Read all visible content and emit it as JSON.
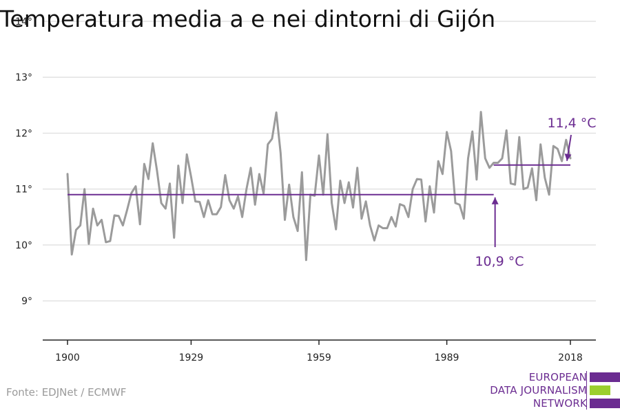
{
  "title": "Temperatura media a e nei dintorni di Gijón",
  "source": "Fonte: EDJNet / ECMWF",
  "logo": {
    "lines": [
      "EUROPEAN",
      "DATA JOURNALISM",
      "NETWORK"
    ],
    "text_color": "#6b2c91",
    "bar_colors": [
      "#6b2c91",
      "#9bcf2e",
      "#6b2c91"
    ]
  },
  "colors": {
    "series": "#9b9b9b",
    "average": "#6b2c91",
    "grid": "#e2e2e2",
    "axis": "#222222"
  },
  "chart_data": {
    "type": "line",
    "title": "Temperatura media a e nei dintorni di Gijón",
    "xlabel": "",
    "ylabel": "",
    "xlim": [
      1900,
      2018
    ],
    "ylim": [
      8.3,
      14
    ],
    "yticks": [
      9,
      10,
      11,
      12,
      13,
      14
    ],
    "ytick_labels": [
      "9°",
      "10°",
      "11°",
      "12°",
      "13°",
      "14°"
    ],
    "xticks": [
      1900,
      1929,
      1959,
      1989,
      2018
    ],
    "xtick_labels": [
      "1900",
      "1929",
      "1959",
      "1989",
      "2018"
    ],
    "grid": true,
    "series": [
      {
        "x_start": 1900,
        "x_step": 1,
        "values": [
          11.27,
          9.83,
          10.27,
          10.35,
          11.0,
          10.02,
          10.65,
          10.35,
          10.45,
          10.05,
          10.07,
          10.53,
          10.52,
          10.35,
          10.63,
          10.93,
          11.05,
          10.37,
          11.45,
          11.18,
          11.82,
          11.33,
          10.75,
          10.65,
          11.1,
          10.13,
          11.42,
          10.75,
          11.62,
          11.22,
          10.78,
          10.77,
          10.5,
          10.8,
          10.55,
          10.55,
          10.68,
          11.25,
          10.8,
          10.65,
          10.87,
          10.5,
          11.0,
          11.38,
          10.72,
          11.27,
          10.92,
          11.8,
          11.9,
          12.37,
          11.65,
          10.45,
          11.08,
          10.5,
          10.25,
          11.3,
          9.73,
          10.9,
          10.88,
          11.6,
          10.9,
          11.98,
          10.75,
          10.28,
          11.15,
          10.75,
          11.12,
          10.67,
          11.38,
          10.47,
          10.78,
          10.35,
          10.08,
          10.35,
          10.3,
          10.3,
          10.5,
          10.33,
          10.73,
          10.7,
          10.5,
          11.0,
          11.18,
          11.17,
          10.42,
          11.05,
          10.58,
          11.5,
          11.27,
          12.02,
          11.68,
          10.75,
          10.72,
          10.47,
          11.55,
          12.03,
          11.17,
          12.38,
          11.55,
          11.38,
          11.47,
          11.47,
          11.55,
          12.05,
          11.1,
          11.08,
          11.93,
          11.0,
          11.03,
          11.37,
          10.8,
          11.8,
          11.2,
          10.9,
          11.77,
          11.72,
          11.5,
          11.88,
          11.55
        ]
      }
    ],
    "averages": [
      {
        "label": "10,9 °C",
        "value": 10.9,
        "x_from": 1900,
        "x_to": 2000
      },
      {
        "label": "11,4 °C",
        "value": 11.43,
        "x_from": 2000,
        "x_to": 2018
      }
    ]
  }
}
